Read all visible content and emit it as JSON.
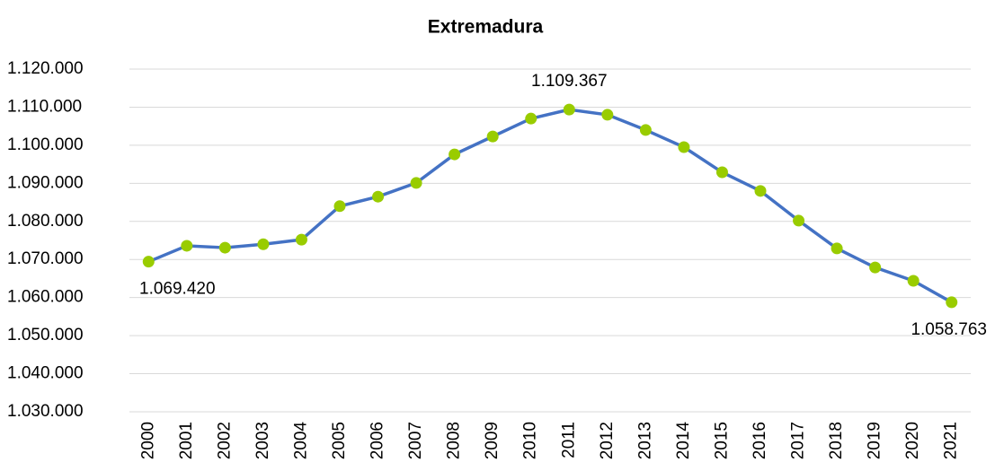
{
  "chart_data": {
    "type": "line",
    "title": "Extremadura",
    "categories": [
      "2000",
      "2001",
      "2002",
      "2003",
      "2004",
      "2005",
      "2006",
      "2007",
      "2008",
      "2009",
      "2010",
      "2011",
      "2012",
      "2013",
      "2014",
      "2015",
      "2016",
      "2017",
      "2018",
      "2019",
      "2020",
      "2021"
    ],
    "series": [
      {
        "color": "#4472c4",
        "marker_color": "#99cc00",
        "values": [
          1069420,
          1073600,
          1073100,
          1074000,
          1075200,
          1084000,
          1086500,
          1090100,
          1097600,
          1102300,
          1107000,
          1109367,
          1108000,
          1104000,
          1099500,
          1092900,
          1088000,
          1080200,
          1072900,
          1067900,
          1064400,
          1058763
        ],
        "value_labels": [
          "1.069.420",
          null,
          null,
          null,
          null,
          null,
          null,
          null,
          null,
          null,
          null,
          "1.109.367",
          null,
          null,
          null,
          null,
          null,
          null,
          null,
          null,
          null,
          "1.058.763"
        ]
      }
    ],
    "ylim": [
      1030000,
      1120000
    ],
    "yticks": [
      {
        "value": 1030000,
        "label": "1.030.000"
      },
      {
        "value": 1040000,
        "label": "1.040.000"
      },
      {
        "value": 1050000,
        "label": "1.050.000"
      },
      {
        "value": 1060000,
        "label": "1.060.000"
      },
      {
        "value": 1070000,
        "label": "1.070.000"
      },
      {
        "value": 1080000,
        "label": "1.080.000"
      },
      {
        "value": 1090000,
        "label": "1.090.000"
      },
      {
        "value": 1100000,
        "label": "1.100.000"
      },
      {
        "value": 1110000,
        "label": "1.110.000"
      },
      {
        "value": 1120000,
        "label": "1.120.000"
      }
    ],
    "grid": true
  }
}
